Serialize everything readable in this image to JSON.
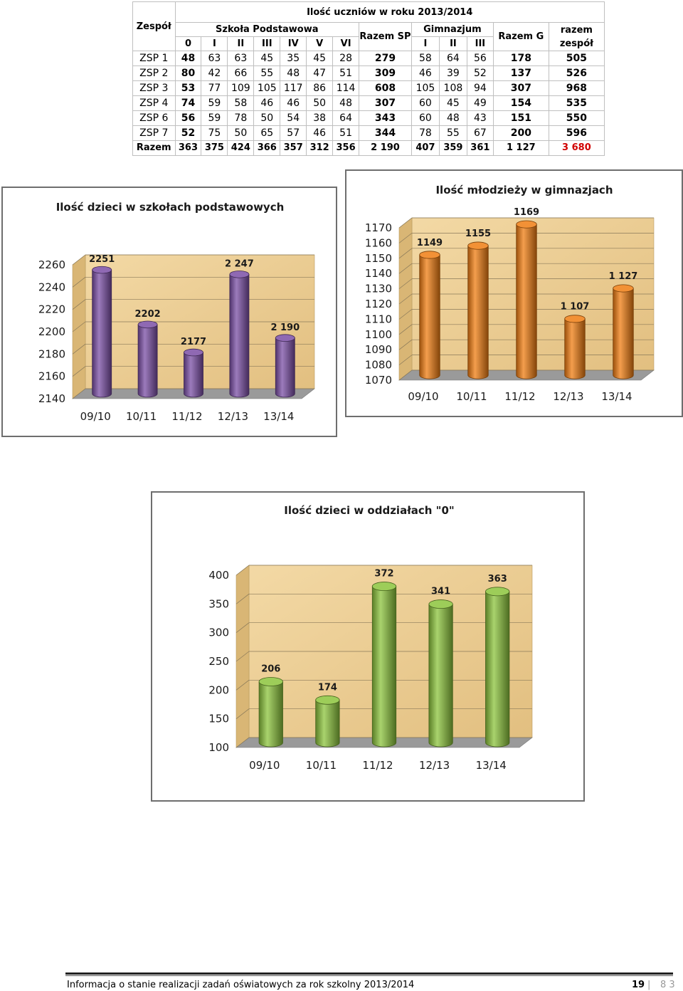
{
  "table": {
    "title": "Ilość uczniów w roku 2013/2014",
    "h_zespol": "Zespół",
    "h_sp": "Szkoła Podstawowa",
    "h_razem_sp": "Razem SP",
    "h_gim": "Gimnazjum",
    "h_razem_g": "Razem G",
    "h_razem_zespol": "razem zespół",
    "sp_cols": [
      "0",
      "I",
      "II",
      "III",
      "IV",
      "V",
      "VI"
    ],
    "g_cols": [
      "I",
      "II",
      "III"
    ],
    "rows": [
      {
        "name": "ZSP 1",
        "sp": [
          "48",
          "63",
          "63",
          "45",
          "35",
          "45",
          "28"
        ],
        "razem_sp": "279",
        "g": [
          "58",
          "64",
          "56"
        ],
        "razem_g": "178",
        "total": "505"
      },
      {
        "name": "ZSP 2",
        "sp": [
          "80",
          "42",
          "66",
          "55",
          "48",
          "47",
          "51"
        ],
        "razem_sp": "309",
        "g": [
          "46",
          "39",
          "52"
        ],
        "razem_g": "137",
        "total": "526"
      },
      {
        "name": "ZSP 3",
        "sp": [
          "53",
          "77",
          "109",
          "105",
          "117",
          "86",
          "114"
        ],
        "razem_sp": "608",
        "g": [
          "105",
          "108",
          "94"
        ],
        "razem_g": "307",
        "total": "968"
      },
      {
        "name": "ZSP 4",
        "sp": [
          "74",
          "59",
          "58",
          "46",
          "46",
          "50",
          "48"
        ],
        "razem_sp": "307",
        "g": [
          "60",
          "45",
          "49"
        ],
        "razem_g": "154",
        "total": "535"
      },
      {
        "name": "ZSP 6",
        "sp": [
          "56",
          "59",
          "78",
          "50",
          "54",
          "38",
          "64"
        ],
        "razem_sp": "343",
        "g": [
          "60",
          "48",
          "43"
        ],
        "razem_g": "151",
        "total": "550"
      },
      {
        "name": "ZSP 7",
        "sp": [
          "52",
          "75",
          "50",
          "65",
          "57",
          "46",
          "51"
        ],
        "razem_sp": "344",
        "g": [
          "78",
          "55",
          "67"
        ],
        "razem_g": "200",
        "total": "596"
      }
    ],
    "total_row": {
      "name": "Razem",
      "sp": [
        "363",
        "375",
        "424",
        "366",
        "357",
        "312",
        "356"
      ],
      "razem_sp": "2 190",
      "g": [
        "407",
        "359",
        "361"
      ],
      "razem_g": "1 127",
      "total": "3 680"
    }
  },
  "chart_data": [
    {
      "type": "bar",
      "title": "Ilość dzieci w szkołach podstawowych",
      "categories": [
        "09/10",
        "10/11",
        "11/12",
        "12/13",
        "13/14"
      ],
      "values": [
        2251,
        2202,
        2177,
        2247,
        2190
      ],
      "data_labels": [
        "2251",
        "2202",
        "2177",
        "2 247",
        "2 190"
      ],
      "yticks": [
        2140,
        2160,
        2180,
        2200,
        2220,
        2240,
        2260
      ],
      "ylim": [
        2140,
        2260
      ],
      "grid": true,
      "color": "#7b4fa6"
    },
    {
      "type": "bar",
      "title": "Ilość młodzieży w gimnazjach",
      "categories": [
        "09/10",
        "10/11",
        "11/12",
        "12/13",
        "13/14"
      ],
      "values": [
        1149,
        1155,
        1169,
        1107,
        1127
      ],
      "data_labels": [
        "1149",
        "1155",
        "1169",
        "1 107",
        "1 127"
      ],
      "yticks": [
        1070,
        1080,
        1090,
        1100,
        1110,
        1120,
        1130,
        1140,
        1150,
        1160,
        1170
      ],
      "ylim": [
        1070,
        1170
      ],
      "grid": true,
      "color": "#f07d12"
    },
    {
      "type": "bar",
      "title": "Ilość dzieci w oddziałach \"0\"",
      "categories": [
        "09/10",
        "10/11",
        "11/12",
        "12/13",
        "13/14"
      ],
      "values": [
        206,
        174,
        372,
        341,
        363
      ],
      "data_labels": [
        "206",
        "174",
        "372",
        "341",
        "363"
      ],
      "yticks": [
        100,
        150,
        200,
        250,
        300,
        350,
        400
      ],
      "ylim": [
        100,
        400
      ],
      "grid": true,
      "color": "#8cc43c"
    }
  ],
  "footer": {
    "text": "Informacja o stanie realizacji zadań oświatowych za rok szkolny 2013/2014",
    "page": "19",
    "sep": "|",
    "section": "8 3"
  }
}
